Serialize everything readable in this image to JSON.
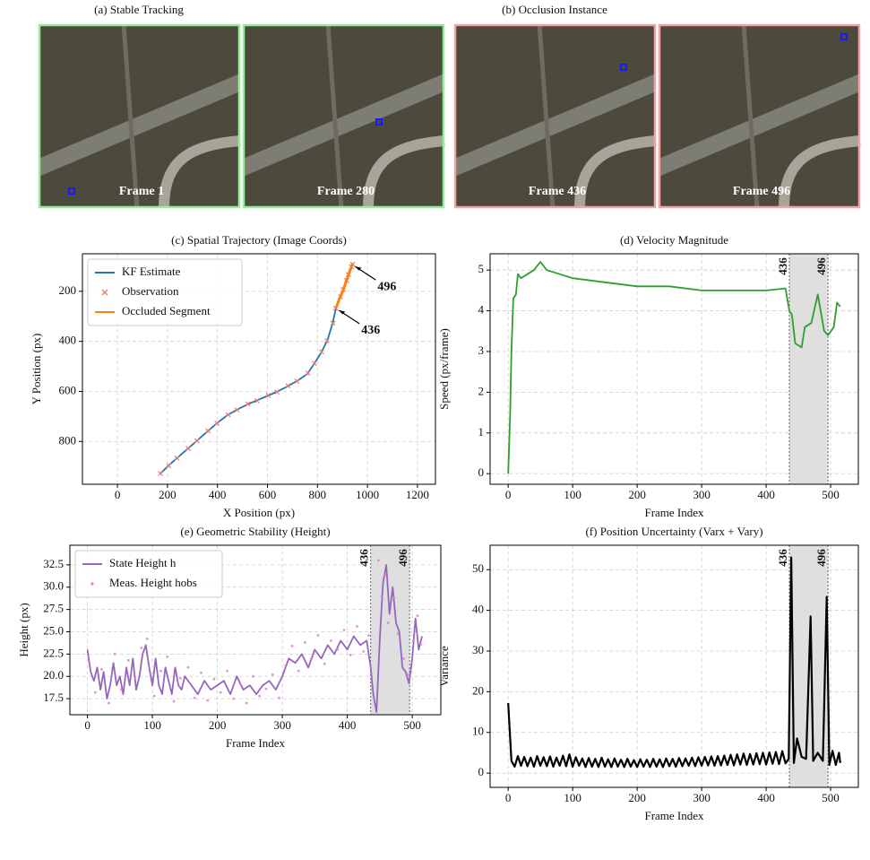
{
  "images": {
    "titles": [
      "(a) Stable Tracking",
      "(b) Occlusion Instance"
    ],
    "frames": [
      "Frame 1",
      "Frame 280",
      "Frame 436",
      "Frame 496"
    ]
  },
  "chart_data": [
    {
      "type": "line",
      "title": "(c) Spatial Trajectory (Image Coords)",
      "xlabel": "X Position (px)",
      "ylabel": "Y Position (px)",
      "xlim": [
        -140,
        1272
      ],
      "ylim": [
        971,
        50
      ],
      "xticks": [
        0,
        200,
        400,
        600,
        800,
        1000,
        1200
      ],
      "yticks": [
        200,
        400,
        600,
        800
      ],
      "grid": true,
      "legend": "upper left",
      "series": [
        {
          "name": "KF Estimate",
          "color": "#1f77b4",
          "style": "line",
          "x": [
            170,
            200,
            240,
            280,
            320,
            360,
            400,
            440,
            480,
            520,
            560,
            600,
            640,
            680,
            720,
            760,
            790,
            815,
            840,
            860,
            875,
            890,
            905,
            915,
            925,
            935,
            940
          ],
          "values": [
            930,
            900,
            865,
            830,
            795,
            760,
            725,
            695,
            672,
            652,
            635,
            618,
            600,
            580,
            557,
            530,
            485,
            445,
            395,
            330,
            265,
            225,
            190,
            160,
            130,
            105,
            90
          ]
        },
        {
          "name": "Observation",
          "color": "#e9786f",
          "style": "x",
          "x": [
            172,
            205,
            238,
            283,
            318,
            362,
            398,
            443,
            478,
            522,
            558,
            603,
            638,
            682,
            718,
            762,
            788,
            817,
            838,
            862,
            873,
            892,
            903,
            917,
            924,
            936,
            941
          ],
          "values": [
            928,
            897,
            866,
            828,
            797,
            757,
            727,
            693,
            674,
            650,
            637,
            616,
            602,
            578,
            559,
            527,
            488,
            442,
            398,
            327,
            268,
            222,
            193,
            157,
            133,
            102,
            92
          ]
        },
        {
          "name": "Occluded Segment",
          "color": "#ff7f0e",
          "style": "line",
          "x": [
            875,
            890,
            905,
            915,
            925,
            935,
            940
          ],
          "values": [
            265,
            225,
            190,
            160,
            130,
            105,
            90
          ]
        }
      ],
      "annotations": [
        {
          "text": "496",
          "x": 940,
          "y": 90
        },
        {
          "text": "436",
          "x": 875,
          "y": 265
        }
      ]
    },
    {
      "type": "line",
      "title": "(d) Velocity Magnitude",
      "xlabel": "Frame Index",
      "ylabel": "Speed (px/frame)",
      "xlim": [
        -28,
        543
      ],
      "ylim": [
        -0.26,
        5.4
      ],
      "xticks": [
        0,
        100,
        200,
        300,
        400,
        500
      ],
      "yticks": [
        0,
        1,
        2,
        3,
        4,
        5
      ],
      "grid": true,
      "occlusion": [
        436,
        496
      ],
      "series": [
        {
          "color": "#2ca02c",
          "style": "line",
          "x": [
            0,
            3,
            5,
            8,
            12,
            15,
            20,
            30,
            40,
            50,
            60,
            80,
            100,
            150,
            200,
            250,
            300,
            350,
            400,
            430,
            436,
            440,
            445,
            455,
            460,
            470,
            480,
            490,
            496,
            505,
            510,
            515
          ],
          "values": [
            0,
            1.4,
            3,
            4.3,
            4.4,
            4.9,
            4.8,
            4.9,
            5.0,
            5.2,
            5.0,
            4.9,
            4.8,
            4.7,
            4.6,
            4.6,
            4.5,
            4.5,
            4.5,
            4.55,
            4.0,
            3.9,
            3.2,
            3.1,
            3.6,
            3.7,
            4.4,
            3.5,
            3.4,
            3.6,
            4.2,
            4.1
          ]
        }
      ]
    },
    {
      "type": "line",
      "title": "(e) Geometric Stability (Height)",
      "xlabel": "Frame Index",
      "ylabel": "Height (px)",
      "xlim": [
        -27,
        544
      ],
      "ylim": [
        15.7,
        34.7
      ],
      "xticks": [
        0,
        100,
        200,
        300,
        400,
        500
      ],
      "yticks": [
        17.5,
        {
          "value": 20,
          "label": "20.0"
        },
        22.5,
        {
          "value": 25,
          "label": "25.0"
        },
        27.5,
        {
          "value": 30,
          "label": "30.0"
        },
        32.5
      ],
      "grid": true,
      "legend": "upper left",
      "occlusion": [
        436,
        496
      ],
      "series": [
        {
          "name": "State Height h",
          "color": "#9467bd",
          "style": "line",
          "x": [
            0,
            5,
            10,
            15,
            20,
            25,
            30,
            35,
            40,
            45,
            50,
            55,
            60,
            65,
            70,
            75,
            80,
            85,
            90,
            95,
            100,
            105,
            110,
            115,
            120,
            125,
            130,
            135,
            140,
            145,
            150,
            160,
            170,
            180,
            190,
            200,
            210,
            220,
            230,
            240,
            250,
            260,
            270,
            280,
            290,
            300,
            310,
            320,
            330,
            340,
            350,
            360,
            370,
            380,
            390,
            400,
            410,
            420,
            430,
            436,
            440,
            445,
            450,
            455,
            460,
            465,
            470,
            475,
            480,
            485,
            490,
            495,
            500,
            505,
            510,
            515
          ],
          "values": [
            23.0,
            20.5,
            19.5,
            21,
            18.5,
            20.5,
            17.5,
            19,
            21.5,
            19,
            20,
            18,
            21,
            19,
            22,
            18.5,
            20,
            22.5,
            23.5,
            21,
            19,
            22,
            19,
            18,
            21,
            19.5,
            18,
            21,
            19,
            18.5,
            20,
            19,
            18,
            19.5,
            18.5,
            19,
            19.5,
            18,
            20,
            18.5,
            19,
            18,
            19,
            19.5,
            18.5,
            20,
            22,
            21.5,
            22.5,
            21,
            23,
            22,
            23.5,
            22.5,
            24,
            23,
            24.5,
            23.5,
            24,
            21,
            18,
            16,
            24,
            30.5,
            32.5,
            27,
            30,
            26,
            25,
            21,
            20.5,
            19.2,
            22,
            26.5,
            23,
            24.5
          ]
        },
        {
          "name": "Meas. Height hobs",
          "color": "#e377c2",
          "style": "dot",
          "x": [
            3,
            12,
            22,
            33,
            42,
            52,
            63,
            72,
            83,
            92,
            103,
            113,
            123,
            133,
            143,
            155,
            165,
            175,
            185,
            195,
            205,
            215,
            225,
            235,
            245,
            255,
            265,
            275,
            285,
            295,
            305,
            315,
            325,
            335,
            345,
            355,
            365,
            375,
            385,
            395,
            405,
            415,
            425,
            433,
            448,
            453,
            458,
            463,
            472,
            478,
            487,
            493,
            502,
            508,
            513
          ],
          "values": [
            21.5,
            18.2,
            20.8,
            17.0,
            22.5,
            18.5,
            21.8,
            20.2,
            23.2,
            24.2,
            17.8,
            20.6,
            22.2,
            17.2,
            19.8,
            21.0,
            17.6,
            20.4,
            17.3,
            19.7,
            18.2,
            20.6,
            17.5,
            19.2,
            17.0,
            20.0,
            17.8,
            18.6,
            20.2,
            17.6,
            21.2,
            23.4,
            20.6,
            23.8,
            22.0,
            24.6,
            21.4,
            24.0,
            23.0,
            25.2,
            22.4,
            25.6,
            22.8,
            24.6,
            33.0,
            29.0,
            31.4,
            26.0,
            28.8,
            24.8,
            22.0,
            20.2,
            24.0,
            26.8,
            23.6
          ]
        }
      ]
    },
    {
      "type": "line",
      "title": "(f) Position Uncertainty (Varx + Vary)",
      "xlabel": "Frame Index",
      "ylabel": "Variance",
      "xlim": [
        -28,
        543
      ],
      "ylim": [
        -3.5,
        56
      ],
      "xticks": [
        0,
        100,
        200,
        300,
        400,
        500
      ],
      "yticks": [
        0,
        10,
        20,
        30,
        40,
        50
      ],
      "grid": true,
      "occlusion": [
        436,
        496
      ],
      "series": [
        {
          "color": "#000000",
          "style": "line",
          "x": [
            0,
            5,
            10,
            15,
            20,
            25,
            30,
            35,
            40,
            45,
            50,
            55,
            60,
            65,
            70,
            75,
            80,
            85,
            90,
            95,
            100,
            105,
            110,
            115,
            120,
            125,
            130,
            135,
            140,
            145,
            150,
            155,
            160,
            165,
            170,
            175,
            180,
            185,
            190,
            195,
            200,
            205,
            210,
            215,
            220,
            225,
            230,
            235,
            240,
            245,
            250,
            255,
            260,
            265,
            270,
            275,
            280,
            285,
            290,
            295,
            300,
            305,
            310,
            315,
            320,
            325,
            330,
            335,
            340,
            345,
            350,
            355,
            360,
            365,
            370,
            375,
            380,
            385,
            390,
            395,
            400,
            405,
            410,
            415,
            420,
            425,
            430,
            435,
            439,
            443,
            448,
            455,
            462,
            469,
            473,
            480,
            488,
            494,
            498,
            503,
            508,
            513,
            515
          ],
          "values": [
            17.2,
            3,
            1.6,
            4.2,
            1.8,
            4.0,
            1.7,
            3.8,
            1.6,
            4.2,
            1.8,
            3.9,
            1.7,
            4.1,
            1.6,
            3.8,
            1.8,
            4.3,
            1.7,
            4.6,
            1.6,
            3.9,
            1.8,
            3.6,
            1.5,
            3.7,
            1.6,
            3.5,
            1.5,
            3.8,
            1.6,
            3.4,
            1.5,
            3.6,
            1.6,
            3.3,
            1.5,
            3.5,
            1.6,
            3.2,
            1.5,
            3.4,
            1.6,
            3.3,
            1.5,
            3.5,
            1.6,
            3.4,
            1.5,
            3.6,
            1.7,
            3.5,
            1.6,
            3.7,
            1.7,
            3.6,
            1.8,
            3.8,
            1.7,
            3.9,
            1.8,
            4.0,
            1.9,
            4.1,
            1.8,
            4.2,
            1.9,
            4.3,
            2.0,
            4.5,
            1.9,
            4.6,
            2.1,
            4.8,
            2.0,
            4.7,
            2.1,
            4.9,
            2.2,
            5.0,
            2.1,
            5.1,
            2.3,
            5.2,
            2.2,
            5.4,
            2.4,
            3.5,
            53,
            2.5,
            8.5,
            4,
            3.5,
            38.5,
            3,
            5,
            3,
            43.3,
            2,
            5.5,
            2,
            5,
            2.5
          ]
        }
      ]
    }
  ]
}
